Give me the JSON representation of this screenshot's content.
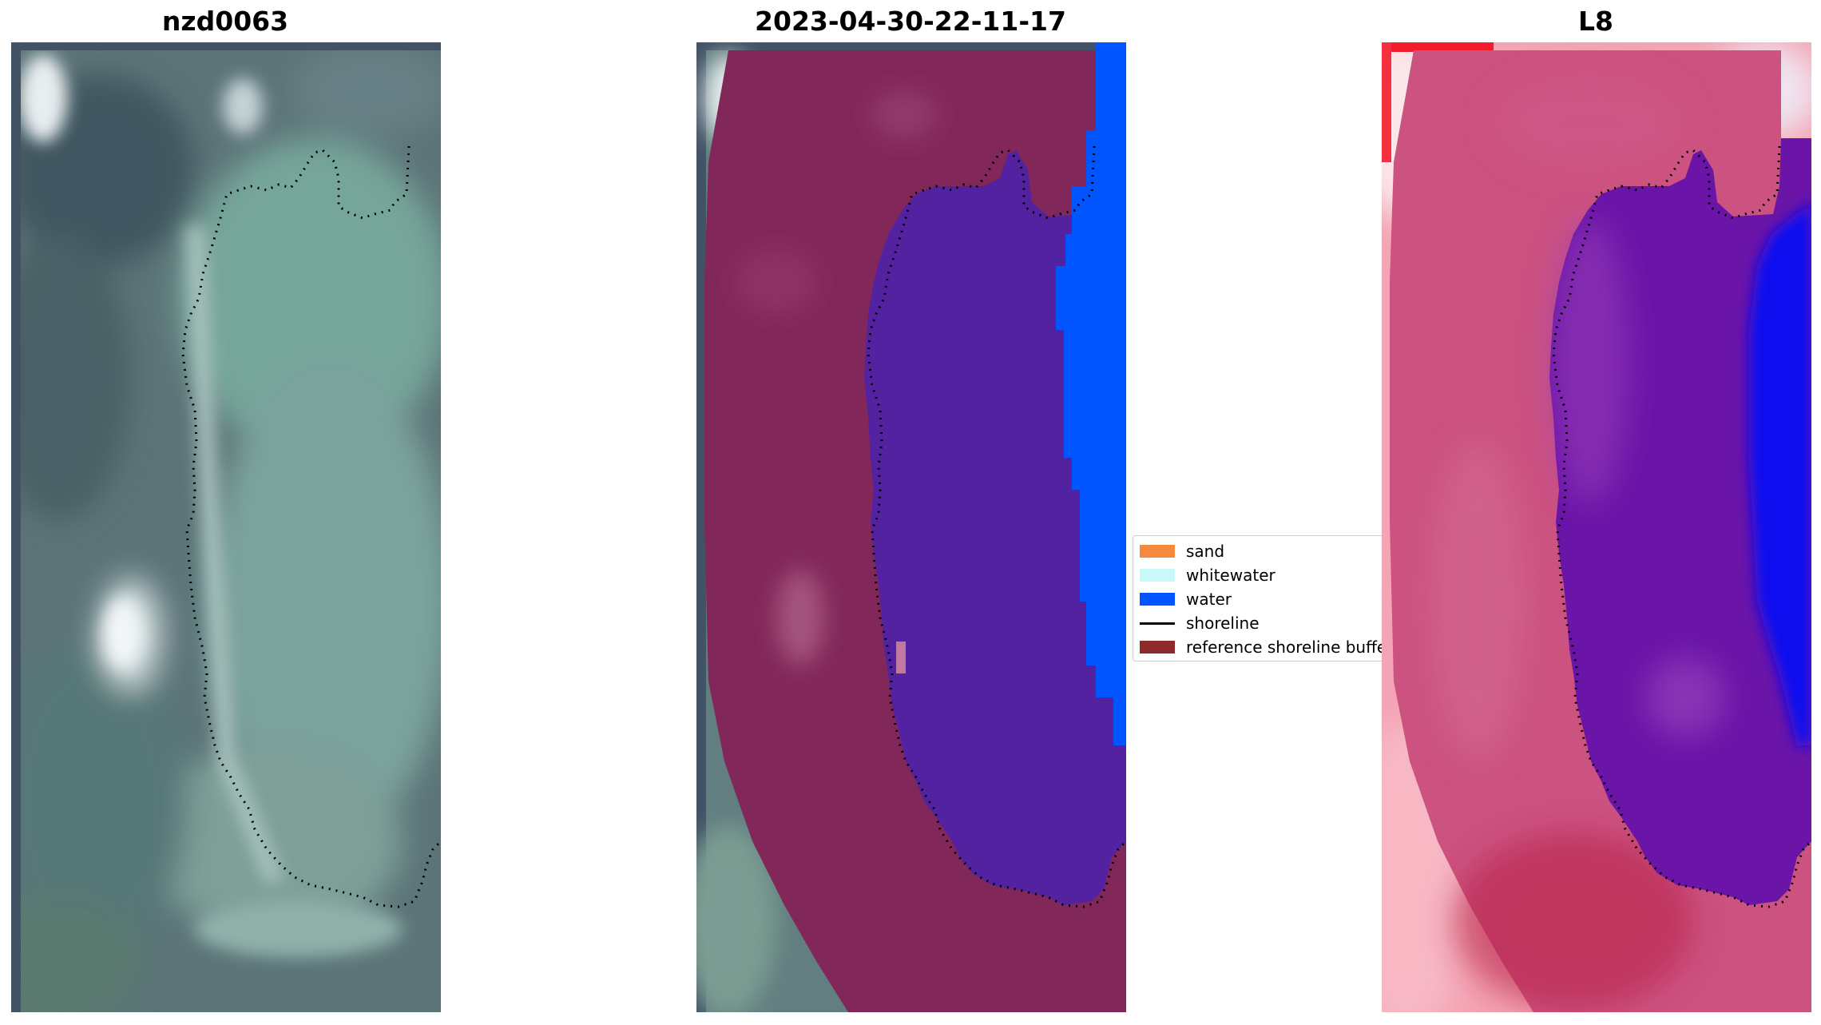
{
  "panels": [
    {
      "title": "nzd0063"
    },
    {
      "title": "2023-04-30-22-11-17"
    },
    {
      "title": "L8"
    }
  ],
  "legend": {
    "items": [
      {
        "label": "sand",
        "color": "#f58a3c"
      },
      {
        "label": "whitewater",
        "color": "#c8fafa"
      },
      {
        "label": "water",
        "color": "#0055ff"
      },
      {
        "label": "shoreline",
        "color": "#000000",
        "kind": "line"
      },
      {
        "label": "reference shoreline buffer",
        "color": "#8e2a2a"
      }
    ]
  },
  "colors": {
    "water_class": "#0055ff",
    "sand_class": "#f58a3c",
    "buffer_overlay": "#8e2a2a",
    "inside_buffer": "#5024a0",
    "rgb_background": "#5f7c7c"
  }
}
